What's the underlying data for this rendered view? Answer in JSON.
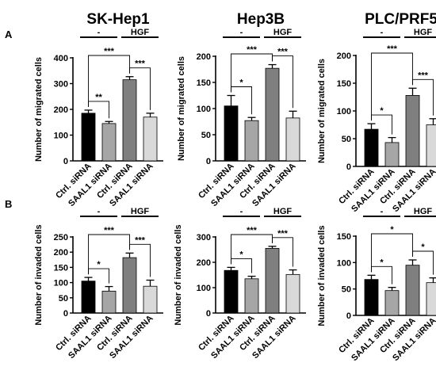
{
  "figure": {
    "panel_labels": [
      "A",
      "B"
    ]
  },
  "chart_data": [
    {
      "type": "bar",
      "panel": "A",
      "title": "SK-Hep1",
      "ylabel": "Number of migrated cells",
      "categories": [
        "Ctrl. siRNA",
        "SAAL1 siRNA",
        "Ctrl. siRNA",
        "SAAL1 siRNA"
      ],
      "values": [
        185,
        145,
        315,
        170
      ],
      "errors": [
        12,
        8,
        12,
        15
      ],
      "bar_colors": [
        "#000000",
        "#a6a6a6",
        "#7f7f7f",
        "#d9d9d9"
      ],
      "ylim": [
        0,
        400
      ],
      "yticks": [
        0,
        100,
        200,
        300,
        400
      ],
      "groups": [
        {
          "label": "-",
          "bars": [
            0,
            1
          ]
        },
        {
          "label": "HGF",
          "bars": [
            2,
            3
          ]
        }
      ],
      "significance": [
        {
          "from": 0,
          "to": 1,
          "label": "**"
        },
        {
          "from": 0,
          "to": 2,
          "label": "***"
        },
        {
          "from": 2,
          "to": 3,
          "label": "***"
        }
      ]
    },
    {
      "type": "bar",
      "panel": "A",
      "title": "Hep3B",
      "ylabel": "Number of migrated cells",
      "categories": [
        "Ctrl. siRNA",
        "SAAL1 siRNA",
        "Ctrl. siRNA",
        "SAAL1 siRNA"
      ],
      "values": [
        105,
        77,
        177,
        82
      ],
      "errors": [
        20,
        6,
        7,
        13
      ],
      "bar_colors": [
        "#000000",
        "#a6a6a6",
        "#7f7f7f",
        "#d9d9d9"
      ],
      "ylim": [
        0,
        200
      ],
      "yticks": [
        0,
        50,
        100,
        150,
        200
      ],
      "groups": [
        {
          "label": "-",
          "bars": [
            0,
            1
          ]
        },
        {
          "label": "HGF",
          "bars": [
            2,
            3
          ]
        }
      ],
      "significance": [
        {
          "from": 0,
          "to": 1,
          "label": "*"
        },
        {
          "from": 0,
          "to": 2,
          "label": "***"
        },
        {
          "from": 2,
          "to": 3,
          "label": "***"
        }
      ]
    },
    {
      "type": "bar",
      "panel": "A",
      "title": "PLC/PRF5",
      "ylabel": "Number of migrated cells",
      "categories": [
        "Ctrl. siRNA",
        "SAAL1 siRNA",
        "Ctrl. siRNA",
        "SAAL1 siRNA"
      ],
      "values": [
        67,
        43,
        128,
        75
      ],
      "errors": [
        10,
        9,
        13,
        11
      ],
      "bar_colors": [
        "#000000",
        "#a6a6a6",
        "#7f7f7f",
        "#d9d9d9"
      ],
      "ylim": [
        0,
        200
      ],
      "yticks": [
        0,
        50,
        100,
        150,
        200
      ],
      "groups": [
        {
          "label": "-",
          "bars": [
            0,
            1
          ]
        },
        {
          "label": "HGF",
          "bars": [
            2,
            3
          ]
        }
      ],
      "significance": [
        {
          "from": 0,
          "to": 1,
          "label": "*"
        },
        {
          "from": 0,
          "to": 2,
          "label": "***"
        },
        {
          "from": 2,
          "to": 3,
          "label": "***"
        }
      ]
    },
    {
      "type": "bar",
      "panel": "B",
      "title": "",
      "ylabel": "Number of invaded cells",
      "categories": [
        "Ctrl. siRNA",
        "SAAL1 siRNA",
        "Ctrl. siRNA",
        "SAAL1 siRNA"
      ],
      "values": [
        105,
        72,
        182,
        88
      ],
      "errors": [
        12,
        15,
        15,
        20
      ],
      "bar_colors": [
        "#000000",
        "#a6a6a6",
        "#7f7f7f",
        "#d9d9d9"
      ],
      "ylim": [
        0,
        250
      ],
      "yticks": [
        0,
        50,
        100,
        150,
        200,
        250
      ],
      "groups": [
        {
          "label": "-",
          "bars": [
            0,
            1
          ]
        },
        {
          "label": "HGF",
          "bars": [
            2,
            3
          ]
        }
      ],
      "significance": [
        {
          "from": 0,
          "to": 1,
          "label": "*"
        },
        {
          "from": 0,
          "to": 2,
          "label": "***"
        },
        {
          "from": 2,
          "to": 3,
          "label": "***"
        }
      ]
    },
    {
      "type": "bar",
      "panel": "B",
      "title": "",
      "ylabel": "Number of invaded cells",
      "categories": [
        "Ctrl. siRNA",
        "SAAL1 siRNA",
        "Ctrl. siRNA",
        "SAAL1 siRNA"
      ],
      "values": [
        168,
        135,
        255,
        152
      ],
      "errors": [
        12,
        10,
        8,
        18
      ],
      "bar_colors": [
        "#000000",
        "#a6a6a6",
        "#7f7f7f",
        "#d9d9d9"
      ],
      "ylim": [
        0,
        300
      ],
      "yticks": [
        0,
        100,
        200,
        300
      ],
      "groups": [
        {
          "label": "-",
          "bars": [
            0,
            1
          ]
        },
        {
          "label": "HGF",
          "bars": [
            2,
            3
          ]
        }
      ],
      "significance": [
        {
          "from": 0,
          "to": 1,
          "label": "*"
        },
        {
          "from": 0,
          "to": 2,
          "label": "***"
        },
        {
          "from": 2,
          "to": 3,
          "label": "***"
        }
      ]
    },
    {
      "type": "bar",
      "panel": "B",
      "title": "",
      "ylabel": "Number of invaded cells",
      "categories": [
        "Ctrl. siRNA",
        "SAAL1 siRNA",
        "Ctrl. siRNA",
        "SAAL1 siRNA"
      ],
      "values": [
        68,
        47,
        95,
        62
      ],
      "errors": [
        8,
        6,
        10,
        9
      ],
      "bar_colors": [
        "#000000",
        "#a6a6a6",
        "#7f7f7f",
        "#d9d9d9"
      ],
      "ylim": [
        0,
        150
      ],
      "yticks": [
        0,
        50,
        100,
        150
      ],
      "groups": [
        {
          "label": "-",
          "bars": [
            0,
            1
          ]
        },
        {
          "label": "HGF",
          "bars": [
            2,
            3
          ]
        }
      ],
      "significance": [
        {
          "from": 0,
          "to": 1,
          "label": "*"
        },
        {
          "from": 0,
          "to": 2,
          "label": "*"
        },
        {
          "from": 2,
          "to": 3,
          "label": "*"
        }
      ]
    }
  ]
}
